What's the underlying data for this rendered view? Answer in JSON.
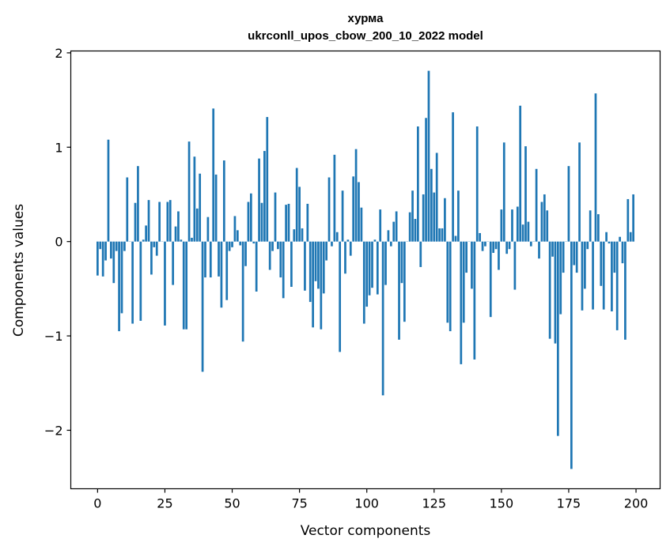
{
  "chart_data": {
    "type": "bar",
    "title": "хурма",
    "subtitle": "ukrconll_upos_cbow_200_10_2022 model",
    "xlabel": "Vector components",
    "ylabel": "Components values",
    "xlim": [
      -9.95,
      208.95
    ],
    "ylim": [
      -2.62,
      2.02
    ],
    "xticks": [
      0,
      25,
      50,
      75,
      100,
      125,
      150,
      175,
      200
    ],
    "yticks": [
      -2,
      -1,
      0,
      1,
      2
    ],
    "ytick_labels": [
      "−2",
      "−1",
      "0",
      "1",
      "2"
    ],
    "grid": false,
    "color": "#1f77b4",
    "values": [
      -0.36,
      -0.08,
      -0.37,
      -0.2,
      1.08,
      -0.18,
      -0.44,
      -0.1,
      -0.95,
      -0.76,
      -0.1,
      0.68,
      0.0,
      -0.87,
      0.41,
      0.8,
      -0.84,
      0.02,
      0.17,
      0.44,
      -0.35,
      -0.06,
      -0.15,
      0.42,
      0.0,
      -0.89,
      0.42,
      0.44,
      -0.46,
      0.16,
      0.32,
      0.02,
      -0.93,
      -0.93,
      1.06,
      0.04,
      0.9,
      0.35,
      0.72,
      -1.38,
      -0.38,
      0.26,
      -0.38,
      1.41,
      0.71,
      -0.37,
      -0.7,
      0.86,
      -0.62,
      -0.1,
      -0.06,
      0.27,
      0.12,
      -0.04,
      -1.06,
      -0.26,
      0.42,
      0.51,
      -0.02,
      -0.53,
      0.88,
      0.41,
      0.96,
      1.32,
      -0.3,
      -0.1,
      0.52,
      -0.08,
      -0.38,
      -0.6,
      0.39,
      0.4,
      -0.48,
      0.13,
      0.78,
      0.58,
      0.14,
      -0.52,
      0.4,
      -0.64,
      -0.91,
      -0.42,
      -0.5,
      -0.93,
      -0.55,
      -0.2,
      0.68,
      -0.05,
      0.92,
      0.1,
      -1.17,
      0.54,
      -0.34,
      0.02,
      -0.15,
      0.69,
      0.98,
      0.63,
      0.36,
      -0.87,
      -0.69,
      -0.57,
      -0.49,
      0.02,
      -0.56,
      0.34,
      -1.63,
      -0.46,
      0.12,
      -0.05,
      0.21,
      0.32,
      -1.04,
      -0.44,
      -0.85,
      0.0,
      0.31,
      0.54,
      0.24,
      1.22,
      -0.27,
      0.5,
      1.31,
      1.81,
      0.77,
      0.52,
      0.94,
      0.14,
      0.14,
      0.46,
      -0.86,
      -0.95,
      1.37,
      0.06,
      0.54,
      -1.3,
      -0.86,
      -0.33,
      0.0,
      -0.5,
      -1.25,
      1.22,
      0.09,
      -0.1,
      -0.05,
      0.0,
      -0.8,
      -0.12,
      -0.08,
      -0.3,
      0.34,
      1.05,
      -0.13,
      -0.08,
      0.34,
      -0.51,
      0.37,
      1.44,
      0.18,
      1.01,
      0.21,
      -0.05,
      0.0,
      0.77,
      -0.18,
      0.42,
      0.5,
      0.33,
      -1.03,
      -0.16,
      -1.08,
      -2.06,
      -0.77,
      -0.33,
      0.0,
      0.8,
      -2.41,
      -0.25,
      -0.33,
      1.05,
      -0.73,
      -0.5,
      -0.08,
      0.33,
      -0.72,
      1.57,
      0.29,
      -0.47,
      -0.72,
      0.1,
      -0.02,
      -0.74,
      -0.33,
      -0.94,
      0.05,
      -0.23,
      -1.04,
      0.45,
      0.1,
      0.5
    ]
  }
}
